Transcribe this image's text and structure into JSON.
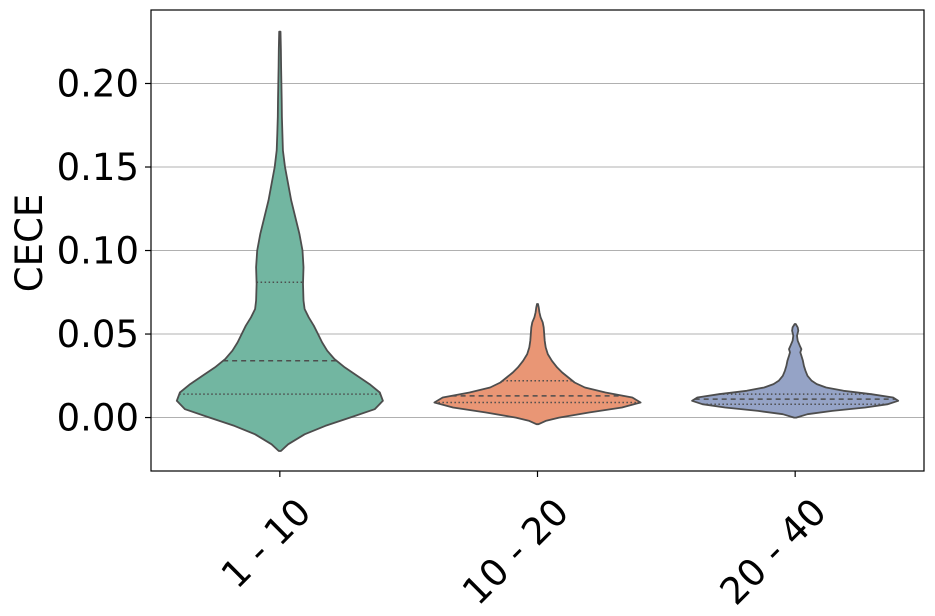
{
  "chart_data": {
    "type": "violin",
    "ylabel": "CECE",
    "xlabel": "",
    "ylim": [
      -0.032,
      0.244
    ],
    "yticks": [
      0.0,
      0.05,
      0.1,
      0.15,
      0.2
    ],
    "ytick_labels": [
      "0.00",
      "0.05",
      "0.10",
      "0.15",
      "0.20"
    ],
    "grid": "y",
    "categories": [
      "1 - 10",
      "10 - 20",
      "20 - 40"
    ],
    "colors": [
      "#72b6a1",
      "#e99675",
      "#95a3c6"
    ],
    "outline_color": "#4d4d4d",
    "violins": [
      {
        "category": "1 - 10",
        "quartiles": [
          0.014,
          0.034,
          0.081
        ],
        "min": -0.02,
        "max": 0.231,
        "profile": [
          [
            -0.02,
            0.01
          ],
          [
            -0.016,
            0.08
          ],
          [
            -0.01,
            0.24
          ],
          [
            -0.005,
            0.44
          ],
          [
            0.0,
            0.68
          ],
          [
            0.005,
            0.92
          ],
          [
            0.01,
            1.0
          ],
          [
            0.015,
            0.97
          ],
          [
            0.02,
            0.87
          ],
          [
            0.025,
            0.75
          ],
          [
            0.03,
            0.63
          ],
          [
            0.035,
            0.53
          ],
          [
            0.04,
            0.46
          ],
          [
            0.045,
            0.41
          ],
          [
            0.05,
            0.37
          ],
          [
            0.055,
            0.33
          ],
          [
            0.06,
            0.28
          ],
          [
            0.065,
            0.24
          ],
          [
            0.07,
            0.23
          ],
          [
            0.08,
            0.225
          ],
          [
            0.09,
            0.23
          ],
          [
            0.1,
            0.22
          ],
          [
            0.11,
            0.19
          ],
          [
            0.12,
            0.15
          ],
          [
            0.13,
            0.11
          ],
          [
            0.14,
            0.08
          ],
          [
            0.15,
            0.05
          ],
          [
            0.16,
            0.03
          ],
          [
            0.17,
            0.025
          ],
          [
            0.18,
            0.02
          ],
          [
            0.19,
            0.018
          ],
          [
            0.2,
            0.015
          ],
          [
            0.21,
            0.012
          ],
          [
            0.22,
            0.01
          ],
          [
            0.231,
            0.006
          ]
        ]
      },
      {
        "category": "10 - 20",
        "quartiles": [
          0.009,
          0.013,
          0.022
        ],
        "min": -0.004,
        "max": 0.068,
        "profile": [
          [
            -0.004,
            0.01
          ],
          [
            -0.002,
            0.08
          ],
          [
            0.0,
            0.21
          ],
          [
            0.003,
            0.5
          ],
          [
            0.006,
            0.82
          ],
          [
            0.009,
            1.0
          ],
          [
            0.012,
            0.92
          ],
          [
            0.015,
            0.66
          ],
          [
            0.018,
            0.46
          ],
          [
            0.021,
            0.36
          ],
          [
            0.024,
            0.3
          ],
          [
            0.027,
            0.24
          ],
          [
            0.03,
            0.19
          ],
          [
            0.034,
            0.14
          ],
          [
            0.038,
            0.1
          ],
          [
            0.042,
            0.08
          ],
          [
            0.046,
            0.07
          ],
          [
            0.05,
            0.065
          ],
          [
            0.054,
            0.06
          ],
          [
            0.057,
            0.05
          ],
          [
            0.06,
            0.03
          ],
          [
            0.063,
            0.018
          ],
          [
            0.066,
            0.012
          ],
          [
            0.068,
            0.005
          ]
        ]
      },
      {
        "category": "20 - 40",
        "quartiles": [
          0.008,
          0.011,
          0.014
        ],
        "min": 0.0,
        "max": 0.056,
        "profile": [
          [
            0.0,
            0.01
          ],
          [
            0.002,
            0.12
          ],
          [
            0.004,
            0.36
          ],
          [
            0.006,
            0.68
          ],
          [
            0.008,
            0.9
          ],
          [
            0.01,
            1.0
          ],
          [
            0.012,
            0.95
          ],
          [
            0.014,
            0.74
          ],
          [
            0.016,
            0.47
          ],
          [
            0.018,
            0.3
          ],
          [
            0.02,
            0.21
          ],
          [
            0.022,
            0.16
          ],
          [
            0.025,
            0.12
          ],
          [
            0.028,
            0.1
          ],
          [
            0.031,
            0.085
          ],
          [
            0.034,
            0.075
          ],
          [
            0.037,
            0.06
          ],
          [
            0.039,
            0.05
          ],
          [
            0.041,
            0.06
          ],
          [
            0.043,
            0.045
          ],
          [
            0.046,
            0.025
          ],
          [
            0.049,
            0.018
          ],
          [
            0.052,
            0.03
          ],
          [
            0.054,
            0.025
          ],
          [
            0.056,
            0.005
          ]
        ]
      }
    ]
  }
}
